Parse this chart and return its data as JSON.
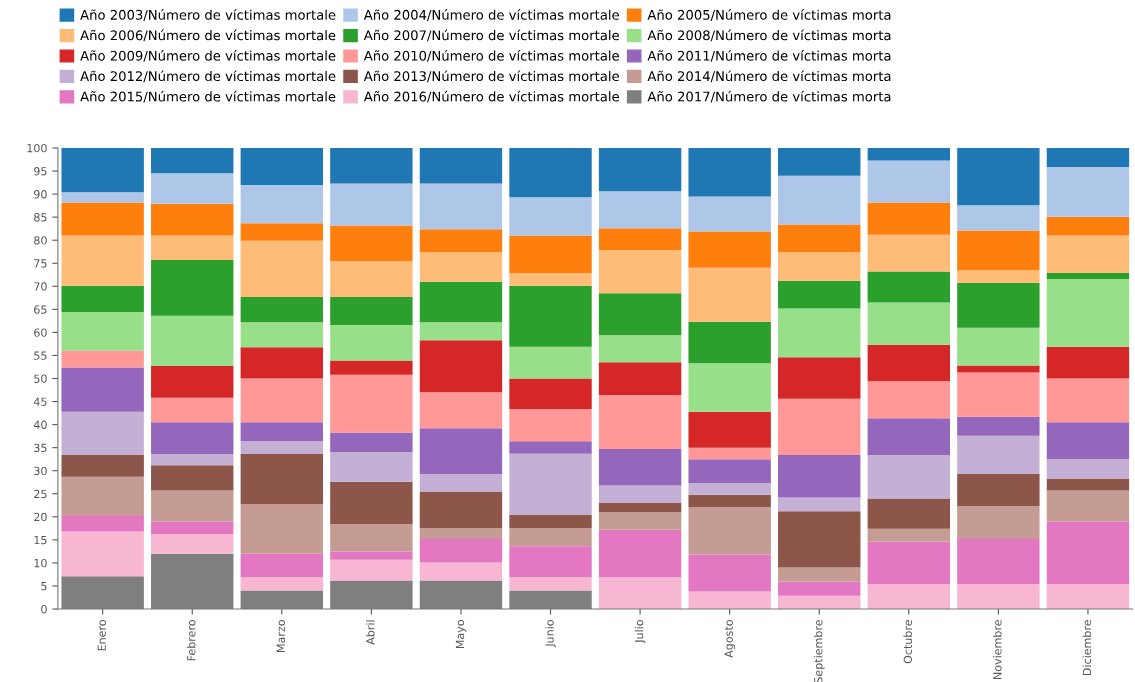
{
  "chart_data": {
    "type": "bar",
    "stacked": true,
    "categories": [
      "Enero",
      "Febrero",
      "Marzo",
      "Abril",
      "Mayo",
      "Junio",
      "Julio",
      "Agosto",
      "Septiembre",
      "Octubre",
      "Noviembre",
      "Diciembre"
    ],
    "ylim": [
      0,
      100
    ],
    "yticks": [
      0,
      5,
      10,
      15,
      20,
      25,
      30,
      35,
      40,
      45,
      50,
      55,
      60,
      65,
      70,
      75,
      80,
      85,
      90,
      95,
      100
    ],
    "grid": false,
    "legend": "top",
    "series": [
      {
        "name": "Año 2017/Número de víctimas morta",
        "color": "#7f7f7f",
        "values": [
          7.1,
          12.0,
          4.0,
          6.2,
          6.2,
          4.0,
          0,
          0,
          0,
          0,
          0,
          0
        ]
      },
      {
        "name": "Año 2016/Número de víctimas mortale",
        "color": "#f7b6d2",
        "values": [
          9.7,
          4.2,
          2.9,
          4.5,
          3.9,
          2.9,
          6.9,
          3.8,
          2.9,
          5.4,
          5.4,
          5.4
        ]
      },
      {
        "name": "Año 2015/Número de víctimas mortale",
        "color": "#e377c2",
        "values": [
          3.4,
          2.8,
          5.1,
          1.8,
          5.1,
          6.7,
          10.3,
          8.0,
          3.0,
          9.2,
          9.8,
          13.6
        ]
      },
      {
        "name": "Año 2014/Número de víctimas morta",
        "color": "#c49c94",
        "values": [
          8.5,
          6.7,
          10.8,
          5.9,
          2.4,
          4.0,
          3.8,
          10.3,
          3.1,
          2.8,
          7.1,
          6.7
        ]
      },
      {
        "name": "Año 2013/Número de víctimas mortale",
        "color": "#8c564b",
        "values": [
          4.7,
          5.5,
          10.8,
          9.2,
          7.9,
          2.8,
          2.1,
          2.7,
          12.2,
          6.6,
          7.0,
          2.6
        ]
      },
      {
        "name": "Año 2012/Número de víctimas mortale",
        "color": "#c5b0d5",
        "values": [
          9.4,
          2.4,
          2.8,
          6.4,
          3.8,
          13.3,
          3.7,
          2.5,
          3.0,
          9.4,
          8.3,
          4.2
        ]
      },
      {
        "name": "Año 2011/Número de víctimas morta",
        "color": "#9467bd",
        "values": [
          9.6,
          6.9,
          4.1,
          4.3,
          9.9,
          2.7,
          7.9,
          5.2,
          9.2,
          8.0,
          4.1,
          8.0
        ]
      },
      {
        "name": "Año 2010/Número de víctimas mortale",
        "color": "#ff9896",
        "values": [
          3.6,
          5.3,
          9.5,
          12.5,
          7.8,
          7.0,
          11.7,
          2.5,
          12.2,
          8.0,
          9.6,
          9.5
        ]
      },
      {
        "name": "Año 2009/Número de víctimas mortale",
        "color": "#d62728",
        "values": [
          0,
          6.9,
          6.8,
          3.1,
          11.3,
          6.6,
          7.1,
          7.8,
          9.0,
          7.9,
          1.5,
          6.9
        ]
      },
      {
        "name": "Año 2008/Número de víctimas morta",
        "color": "#98df8a",
        "values": [
          8.4,
          10.9,
          5.4,
          7.7,
          3.9,
          6.9,
          5.9,
          10.5,
          10.6,
          9.2,
          8.2,
          14.7
        ]
      },
      {
        "name": "Año 2007/Número de víctimas mortale",
        "color": "#2ca02c",
        "values": [
          5.7,
          12.1,
          5.5,
          6.1,
          8.8,
          13.2,
          9.1,
          9.0,
          6.0,
          6.7,
          9.7,
          1.3
        ]
      },
      {
        "name": "Año 2006/Número de víctimas mortale",
        "color": "#ffbb78",
        "values": [
          10.9,
          5.3,
          12.2,
          7.8,
          6.4,
          2.8,
          9.4,
          11.7,
          6.2,
          8.0,
          2.8,
          8.1
        ]
      },
      {
        "name": "Año 2005/Número de víctimas morta",
        "color": "#ff7f0e",
        "values": [
          7.2,
          6.9,
          3.8,
          7.7,
          5.0,
          8.1,
          4.7,
          7.9,
          6.0,
          7.0,
          8.6,
          4.1
        ]
      },
      {
        "name": "Año 2004/Número de víctimas mortale",
        "color": "#aec7e8",
        "values": [
          2.2,
          6.6,
          8.3,
          9.1,
          9.9,
          8.3,
          8.0,
          7.6,
          10.6,
          9.1,
          5.5,
          10.8
        ]
      },
      {
        "name": "Año 2003/Número de víctimas mortale",
        "color": "#1f77b4",
        "values": [
          9.6,
          5.5,
          8.0,
          7.7,
          7.7,
          10.7,
          9.4,
          10.5,
          6.0,
          2.7,
          12.4,
          4.1
        ]
      }
    ]
  }
}
